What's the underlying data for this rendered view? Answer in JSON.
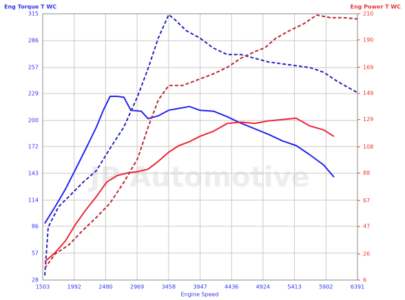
{
  "chart_data": {
    "type": "line",
    "y_title": "Eng Torque T WC",
    "y2_title": "Eng Power T WC",
    "x_title": "Engine Speed",
    "watermark": "JP Automotive",
    "xlim": [
      1503,
      6391
    ],
    "xticks": [
      1503,
      1992,
      2480,
      2969,
      3458,
      3947,
      4436,
      4924,
      5413,
      5902,
      6391
    ],
    "ylim": [
      28,
      315
    ],
    "yticks": [
      28,
      57,
      86,
      114,
      143,
      172,
      200,
      229,
      257,
      286,
      315
    ],
    "y2lim": [
      6,
      210
    ],
    "y2ticks": [
      6,
      26,
      47,
      67,
      88,
      108,
      129,
      149,
      169,
      190,
      210
    ],
    "grid": true,
    "y_color": "#3333ee",
    "y2_color": "#ee3333",
    "series": [
      {
        "color": "#2222ee",
        "dash": "solid",
        "axis": "y",
        "x": [
          1535,
          1696,
          1856,
          2017,
          2177,
          2337,
          2444,
          2550,
          2657,
          2764,
          2871,
          3032,
          3139,
          3299,
          3460,
          3620,
          3781,
          3941,
          4155,
          4369,
          4583,
          4796,
          5010,
          5224,
          5438,
          5652,
          5866,
          6026
        ],
        "values": [
          89,
          107,
          126,
          148,
          170,
          193,
          211,
          226,
          226,
          225,
          211,
          210,
          202,
          205,
          211,
          213,
          215,
          211,
          210,
          204,
          197,
          191,
          185,
          178,
          173,
          163,
          152,
          139
        ]
      },
      {
        "color": "#2222bb",
        "dash": "dashed",
        "axis": "y",
        "x": [
          1535,
          1589,
          1749,
          1910,
          2124,
          2337,
          2550,
          2764,
          2977,
          3139,
          3299,
          3460,
          3566,
          3727,
          3941,
          4155,
          4369,
          4583,
          4796,
          5010,
          5224,
          5438,
          5652,
          5866,
          6080,
          6391
        ],
        "values": [
          33,
          85,
          107,
          118,
          133,
          146,
          170,
          193,
          226,
          256,
          289,
          314,
          308,
          297,
          289,
          278,
          271,
          271,
          267,
          263,
          261,
          259,
          257,
          252,
          242,
          230
        ]
      },
      {
        "color": "#ee2233",
        "dash": "solid",
        "axis": "y2",
        "x": [
          1535,
          1696,
          1856,
          2017,
          2177,
          2337,
          2497,
          2657,
          2817,
          2977,
          3139,
          3299,
          3460,
          3620,
          3781,
          3941,
          4155,
          4369,
          4583,
          4796,
          5010,
          5224,
          5438,
          5652,
          5866,
          6026
        ],
        "values": [
          20,
          27,
          36,
          49,
          60,
          70,
          81,
          86,
          88,
          89,
          91,
          97,
          104,
          109,
          112,
          116,
          120,
          126,
          127,
          126,
          128,
          129,
          130,
          124,
          121,
          116
        ]
      },
      {
        "color": "#bb2233",
        "dash": "dashed",
        "axis": "y2",
        "x": [
          1535,
          1696,
          1910,
          2124,
          2337,
          2550,
          2764,
          2977,
          3139,
          3299,
          3460,
          3674,
          3941,
          4155,
          4369,
          4583,
          4796,
          4956,
          5117,
          5331,
          5545,
          5759,
          5973,
          6187,
          6391
        ],
        "values": [
          15,
          26,
          33,
          44,
          54,
          65,
          81,
          99,
          123,
          144,
          155,
          155,
          160,
          164,
          169,
          176,
          181,
          184,
          191,
          197,
          202,
          209,
          207,
          207,
          206
        ]
      }
    ]
  }
}
